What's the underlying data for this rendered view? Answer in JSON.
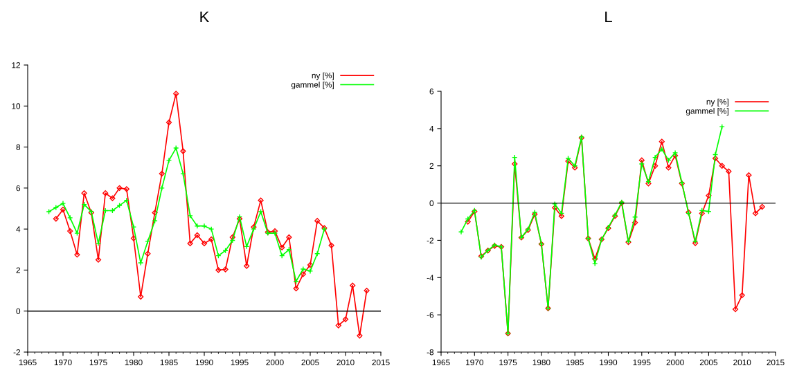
{
  "chart_data": [
    {
      "type": "line",
      "title": "K",
      "xlim": [
        1965,
        2015
      ],
      "xticks": [
        1965,
        1970,
        1975,
        1980,
        1985,
        1990,
        1995,
        2000,
        2005,
        2010,
        2015
      ],
      "ylim": [
        -2,
        12
      ],
      "yticks": [
        -2,
        0,
        2,
        4,
        6,
        8,
        10,
        12
      ],
      "legend": "top right",
      "grid": false,
      "ref_lines": [
        {
          "axis": "y",
          "value": 0,
          "color": "#000000"
        }
      ],
      "series": [
        {
          "name": "ny [%]",
          "color": "#ff0000",
          "marker": "diamond",
          "x": [
            1969,
            1970,
            1971,
            1972,
            1973,
            1974,
            1975,
            1976,
            1977,
            1978,
            1979,
            1980,
            1981,
            1982,
            1983,
            1984,
            1985,
            1986,
            1987,
            1988,
            1989,
            1990,
            1991,
            1992,
            1993,
            1994,
            1995,
            1996,
            1997,
            1998,
            1999,
            2000,
            2001,
            2002,
            2003,
            2004,
            2005,
            2006,
            2007,
            2008,
            2009,
            2010,
            2011,
            2012,
            2013
          ],
          "values": [
            4.5,
            4.95,
            3.9,
            2.75,
            5.75,
            4.8,
            2.5,
            5.75,
            5.5,
            6.0,
            5.95,
            3.55,
            0.7,
            2.8,
            4.8,
            6.7,
            9.2,
            10.6,
            7.8,
            3.3,
            3.7,
            3.3,
            3.5,
            2.0,
            2.03,
            3.6,
            4.5,
            2.2,
            4.1,
            5.4,
            3.85,
            3.9,
            3.1,
            3.6,
            1.1,
            1.8,
            2.25,
            4.4,
            4.05,
            3.2,
            -0.7,
            -0.4,
            1.25,
            -1.2,
            1.0
          ]
        },
        {
          "name": "gammel [%]",
          "color": "#00ff00",
          "marker": "cross",
          "x": [
            1968,
            1969,
            1970,
            1971,
            1972,
            1973,
            1974,
            1975,
            1976,
            1977,
            1978,
            1979,
            1980,
            1981,
            1982,
            1983,
            1984,
            1985,
            1986,
            1987,
            1988,
            1989,
            1990,
            1991,
            1992,
            1993,
            1994,
            1995,
            1996,
            1997,
            1998,
            1999,
            2000,
            2001,
            2002,
            2003,
            2004,
            2005,
            2006,
            2007
          ],
          "values": [
            4.85,
            5.05,
            5.25,
            4.55,
            3.8,
            5.2,
            4.85,
            3.3,
            4.9,
            4.9,
            5.15,
            5.4,
            4.1,
            2.35,
            3.4,
            4.4,
            6.0,
            7.35,
            7.95,
            6.7,
            4.65,
            4.15,
            4.15,
            4.0,
            2.7,
            2.95,
            3.45,
            4.6,
            3.15,
            4.0,
            4.85,
            3.8,
            3.8,
            2.7,
            3.0,
            1.45,
            2.05,
            1.95,
            2.8,
            4.0
          ]
        }
      ]
    },
    {
      "type": "line",
      "title": "L",
      "xlim": [
        1965,
        2015
      ],
      "xticks": [
        1965,
        1970,
        1975,
        1980,
        1985,
        1990,
        1995,
        2000,
        2005,
        2010,
        2015
      ],
      "ylim": [
        -8,
        6
      ],
      "yticks": [
        -8,
        -6,
        -4,
        -2,
        0,
        2,
        4,
        6
      ],
      "legend": "top right",
      "grid": false,
      "ref_lines": [
        {
          "axis": "y",
          "value": 0,
          "color": "#000000"
        }
      ],
      "series": [
        {
          "name": "ny [%]",
          "color": "#ff0000",
          "marker": "diamond",
          "x": [
            1969,
            1970,
            1971,
            1972,
            1973,
            1974,
            1975,
            1976,
            1977,
            1978,
            1979,
            1980,
            1981,
            1982,
            1983,
            1984,
            1985,
            1986,
            1987,
            1988,
            1989,
            1990,
            1991,
            1992,
            1993,
            1994,
            1995,
            1996,
            1997,
            1998,
            1999,
            2000,
            2001,
            2002,
            2003,
            2004,
            2005,
            2006,
            2007,
            2008,
            2009,
            2010,
            2011,
            2012,
            2013
          ],
          "values": [
            -1.0,
            -0.45,
            -2.85,
            -2.55,
            -2.3,
            -2.35,
            -7.0,
            2.1,
            -1.85,
            -1.45,
            -0.6,
            -2.2,
            -5.65,
            -0.25,
            -0.7,
            2.25,
            1.9,
            3.5,
            -1.9,
            -3.0,
            -1.95,
            -1.35,
            -0.7,
            0.0,
            -2.1,
            -1.05,
            2.3,
            1.05,
            2.0,
            3.3,
            1.9,
            2.55,
            1.05,
            -0.5,
            -2.15,
            -0.55,
            0.4,
            2.4,
            2.0,
            1.7,
            -5.7,
            -4.95,
            1.5,
            -0.55,
            -0.2
          ]
        },
        {
          "name": "gammel [%]",
          "color": "#00ff00",
          "marker": "cross",
          "x": [
            1968,
            1969,
            1970,
            1971,
            1972,
            1973,
            1974,
            1975,
            1976,
            1977,
            1978,
            1979,
            1980,
            1981,
            1982,
            1983,
            1984,
            1985,
            1986,
            1987,
            1988,
            1989,
            1990,
            1991,
            1992,
            1993,
            1994,
            1995,
            1996,
            1997,
            1998,
            1999,
            2000,
            2001,
            2002,
            2003,
            2004,
            2005,
            2006,
            2007
          ],
          "values": [
            -1.55,
            -0.85,
            -0.4,
            -2.9,
            -2.55,
            -2.25,
            -2.35,
            -7.0,
            2.45,
            -1.85,
            -1.4,
            -0.5,
            -2.2,
            -5.65,
            -0.05,
            -0.55,
            2.4,
            2.0,
            3.55,
            -1.9,
            -3.25,
            -1.95,
            -1.3,
            -0.65,
            0.05,
            -2.05,
            -0.75,
            2.1,
            1.15,
            2.45,
            2.9,
            2.3,
            2.7,
            1.1,
            -0.55,
            -2.05,
            -0.4,
            -0.45,
            2.6,
            4.1
          ]
        }
      ]
    }
  ]
}
